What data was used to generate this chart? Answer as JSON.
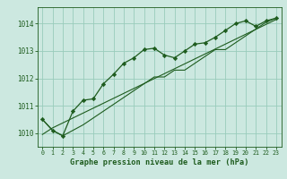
{
  "x": [
    0,
    1,
    2,
    3,
    4,
    5,
    6,
    7,
    8,
    9,
    10,
    11,
    12,
    13,
    14,
    15,
    16,
    17,
    18,
    19,
    20,
    21,
    22,
    23
  ],
  "y_main": [
    1010.5,
    1010.1,
    1009.9,
    1010.8,
    1011.2,
    1011.25,
    1011.8,
    1012.15,
    1012.55,
    1012.75,
    1013.05,
    1013.1,
    1012.85,
    1012.75,
    1013.0,
    1013.25,
    1013.3,
    1013.5,
    1013.75,
    1014.0,
    1014.1,
    1013.9,
    1014.1,
    1014.2
  ],
  "y_low": [
    1010.5,
    1010.1,
    1009.9,
    1010.1,
    1010.3,
    1010.55,
    1010.8,
    1011.05,
    1011.3,
    1011.55,
    1011.8,
    1012.05,
    1012.05,
    1012.3,
    1012.3,
    1012.55,
    1012.8,
    1013.05,
    1013.05,
    1013.3,
    1013.55,
    1013.8,
    1014.05,
    1014.2
  ],
  "y_trend": [
    1009.95,
    1010.19,
    1010.37,
    1010.55,
    1010.73,
    1010.91,
    1011.09,
    1011.27,
    1011.45,
    1011.63,
    1011.81,
    1011.99,
    1012.17,
    1012.35,
    1012.53,
    1012.71,
    1012.89,
    1013.07,
    1013.25,
    1013.43,
    1013.61,
    1013.79,
    1013.97,
    1014.15
  ],
  "bg_color": "#cce8e0",
  "grid_color": "#99ccbb",
  "line_color": "#1e5c1e",
  "xlabel": "Graphe pression niveau de la mer (hPa)",
  "ylim": [
    1009.5,
    1014.6
  ],
  "xlim": [
    -0.5,
    23.5
  ],
  "yticks": [
    1010,
    1011,
    1012,
    1013,
    1014
  ],
  "xticks": [
    0,
    1,
    2,
    3,
    4,
    5,
    6,
    7,
    8,
    9,
    10,
    11,
    12,
    13,
    14,
    15,
    16,
    17,
    18,
    19,
    20,
    21,
    22,
    23
  ]
}
